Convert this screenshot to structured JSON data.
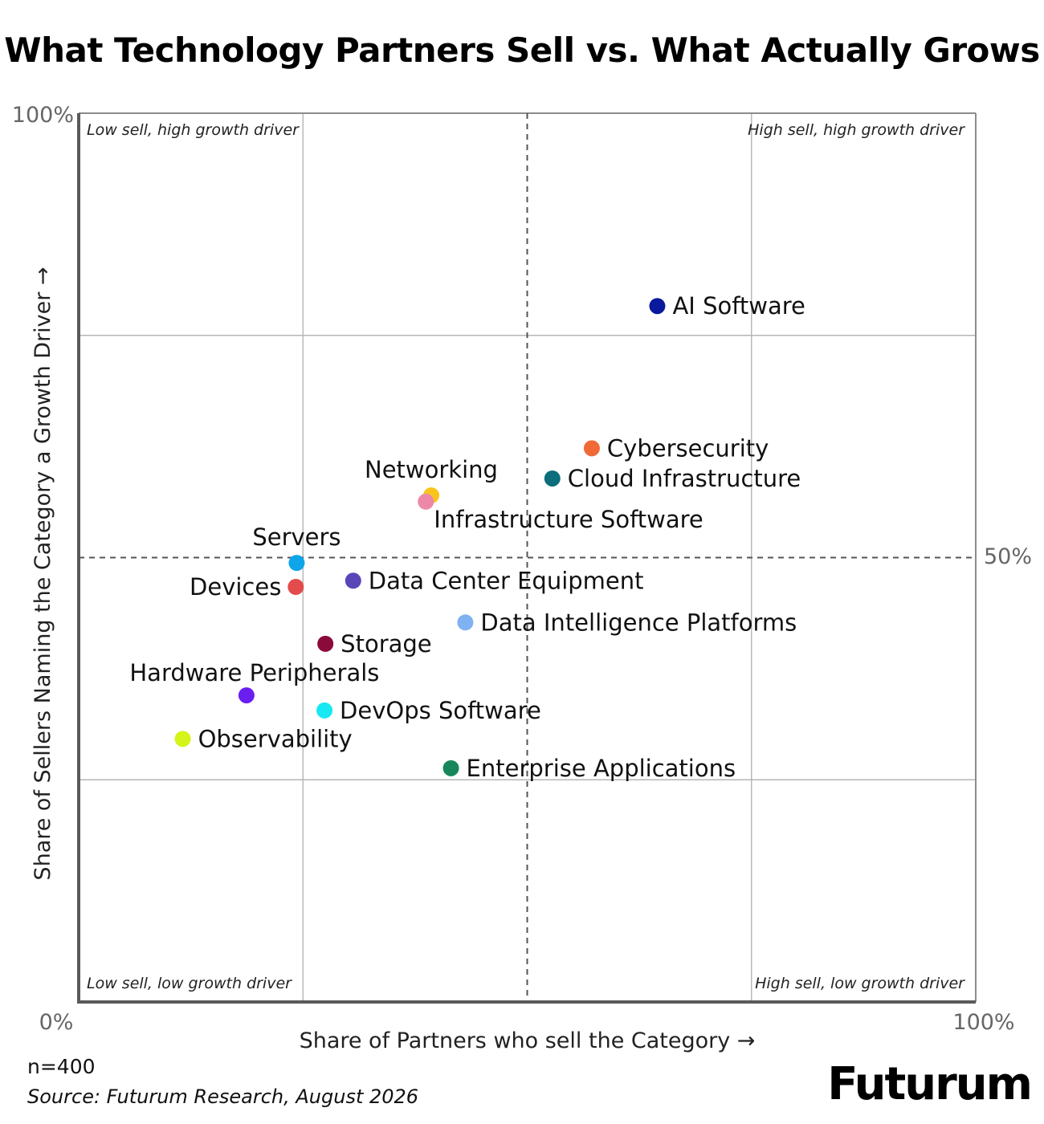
{
  "chart_data": {
    "type": "scatter",
    "title": "What Technology Partners Sell vs. What Actually Grows",
    "xlabel": "Share of Partners who sell the Category →",
    "ylabel": "Share of Sellers Naming the Category a Growth Driver →",
    "xlim": [
      0,
      100
    ],
    "ylim": [
      0,
      100
    ],
    "x_tick_labels": {
      "min": "0%",
      "max": "100%"
    },
    "y_tick_labels": {
      "max": "100%",
      "mid": "50%"
    },
    "grid": true,
    "quadrant_dividers": {
      "x": 50,
      "y": 50
    },
    "quadrant_labels": {
      "top_left": "Low sell, high growth driver",
      "top_right": "High sell, high growth driver",
      "bottom_left": "Low sell, low growth driver",
      "bottom_right": "High sell, low growth driver"
    },
    "points": [
      {
        "label": "AI Software",
        "x": 64.5,
        "y": 78.3,
        "color": "#0a1a9c",
        "label_pos": "right"
      },
      {
        "label": "Cybersecurity",
        "x": 57.2,
        "y": 62.3,
        "color": "#ef6a37",
        "label_pos": "right"
      },
      {
        "label": "Cloud Infrastructure",
        "x": 52.8,
        "y": 58.9,
        "color": "#0b6e7a",
        "label_pos": "right"
      },
      {
        "label": "Networking",
        "x": 39.3,
        "y": 57.0,
        "color": "#f9c51c",
        "label_pos": "above"
      },
      {
        "label": "Infrastructure Software",
        "x": 38.7,
        "y": 56.3,
        "color": "#ee88a8",
        "label_pos": "below-right"
      },
      {
        "label": "Servers",
        "x": 24.3,
        "y": 49.4,
        "color": "#0ea5e9",
        "label_pos": "above"
      },
      {
        "label": "Devices",
        "x": 24.2,
        "y": 46.7,
        "color": "#e44c4c",
        "label_pos": "left"
      },
      {
        "label": "Data Center Equipment",
        "x": 30.6,
        "y": 47.4,
        "color": "#5a45b8",
        "label_pos": "right"
      },
      {
        "label": "Data Intelligence Platforms",
        "x": 43.1,
        "y": 42.7,
        "color": "#7fb2f0",
        "label_pos": "right"
      },
      {
        "label": "Storage",
        "x": 27.5,
        "y": 40.3,
        "color": "#8a0a3a",
        "label_pos": "right"
      },
      {
        "label": "Hardware Peripherals",
        "x": 18.7,
        "y": 34.5,
        "color": "#6a1ef0",
        "label_pos": "above-left"
      },
      {
        "label": "DevOps Software",
        "x": 27.4,
        "y": 32.8,
        "color": "#18e8f2",
        "label_pos": "right"
      },
      {
        "label": "Observability",
        "x": 11.6,
        "y": 29.6,
        "color": "#d4f41a",
        "label_pos": "right"
      },
      {
        "label": "Enterprise Applications",
        "x": 41.5,
        "y": 26.3,
        "color": "#17875a",
        "label_pos": "right"
      }
    ]
  },
  "footer": {
    "n": "n=400",
    "source": "Source: Futurum Research, August 2026"
  },
  "logo": "Futurum"
}
